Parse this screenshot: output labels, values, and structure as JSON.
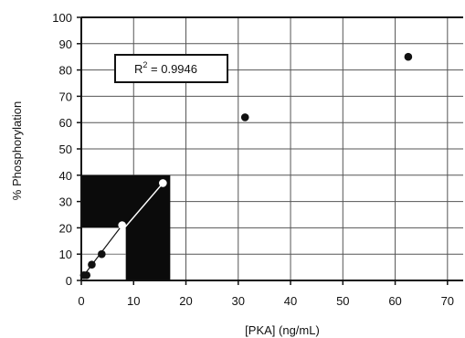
{
  "chart_data": {
    "type": "scatter",
    "title": "",
    "xlabel": "[PKA] (ng/mL)",
    "ylabel": "% Phosphorylation",
    "xlim": [
      0,
      73
    ],
    "ylim": [
      0,
      100
    ],
    "xticks": [
      "0",
      "10",
      "20",
      "30",
      "40",
      "50",
      "60",
      "70"
    ],
    "yticks": [
      "0",
      "10",
      "20",
      "30",
      "40",
      "50",
      "60",
      "70",
      "80",
      "90",
      "100"
    ],
    "grid": true,
    "series": [
      {
        "points": [
          {
            "x": 0.5,
            "y": 2
          },
          {
            "x": 1,
            "y": 2
          },
          {
            "x": 2,
            "y": 6
          },
          {
            "x": 3.9,
            "y": 10
          },
          {
            "x": 7.8,
            "y": 21
          },
          {
            "x": 15.6,
            "y": 37
          },
          {
            "x": 31.3,
            "y": 62
          },
          {
            "x": 62.5,
            "y": 85
          }
        ]
      }
    ],
    "annotation": {
      "text": "R² = 0.9946",
      "prefix": "R",
      "superscript": "2",
      "suffix": " = 0.9946",
      "position": "upper-left"
    },
    "inset": {
      "description": "black highlighted region with linear fit through first six points",
      "region_x": [
        0,
        17
      ],
      "region_y": [
        0,
        40
      ],
      "fit_line": {
        "x": [
          0.5,
          15.6
        ],
        "y": [
          2,
          37
        ]
      }
    }
  }
}
